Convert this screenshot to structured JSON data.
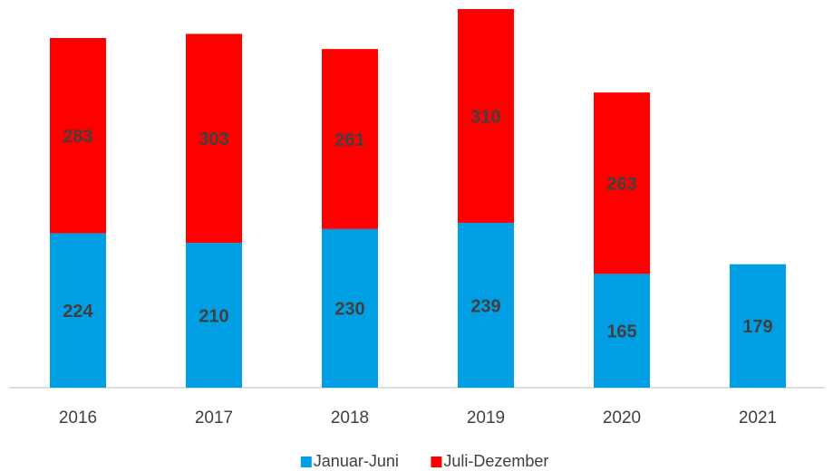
{
  "chart_data": {
    "type": "stacked_bar",
    "categories": [
      "2016",
      "2017",
      "2018",
      "2019",
      "2020",
      "2021"
    ],
    "series": [
      {
        "name": "Januar-Juni",
        "color": "#009fe3",
        "values": [
          224,
          210,
          230,
          239,
          165,
          179
        ]
      },
      {
        "name": "Juli-Dezember",
        "color": "#ff0000",
        "values": [
          283,
          303,
          261,
          310,
          263,
          null
        ]
      }
    ]
  }
}
